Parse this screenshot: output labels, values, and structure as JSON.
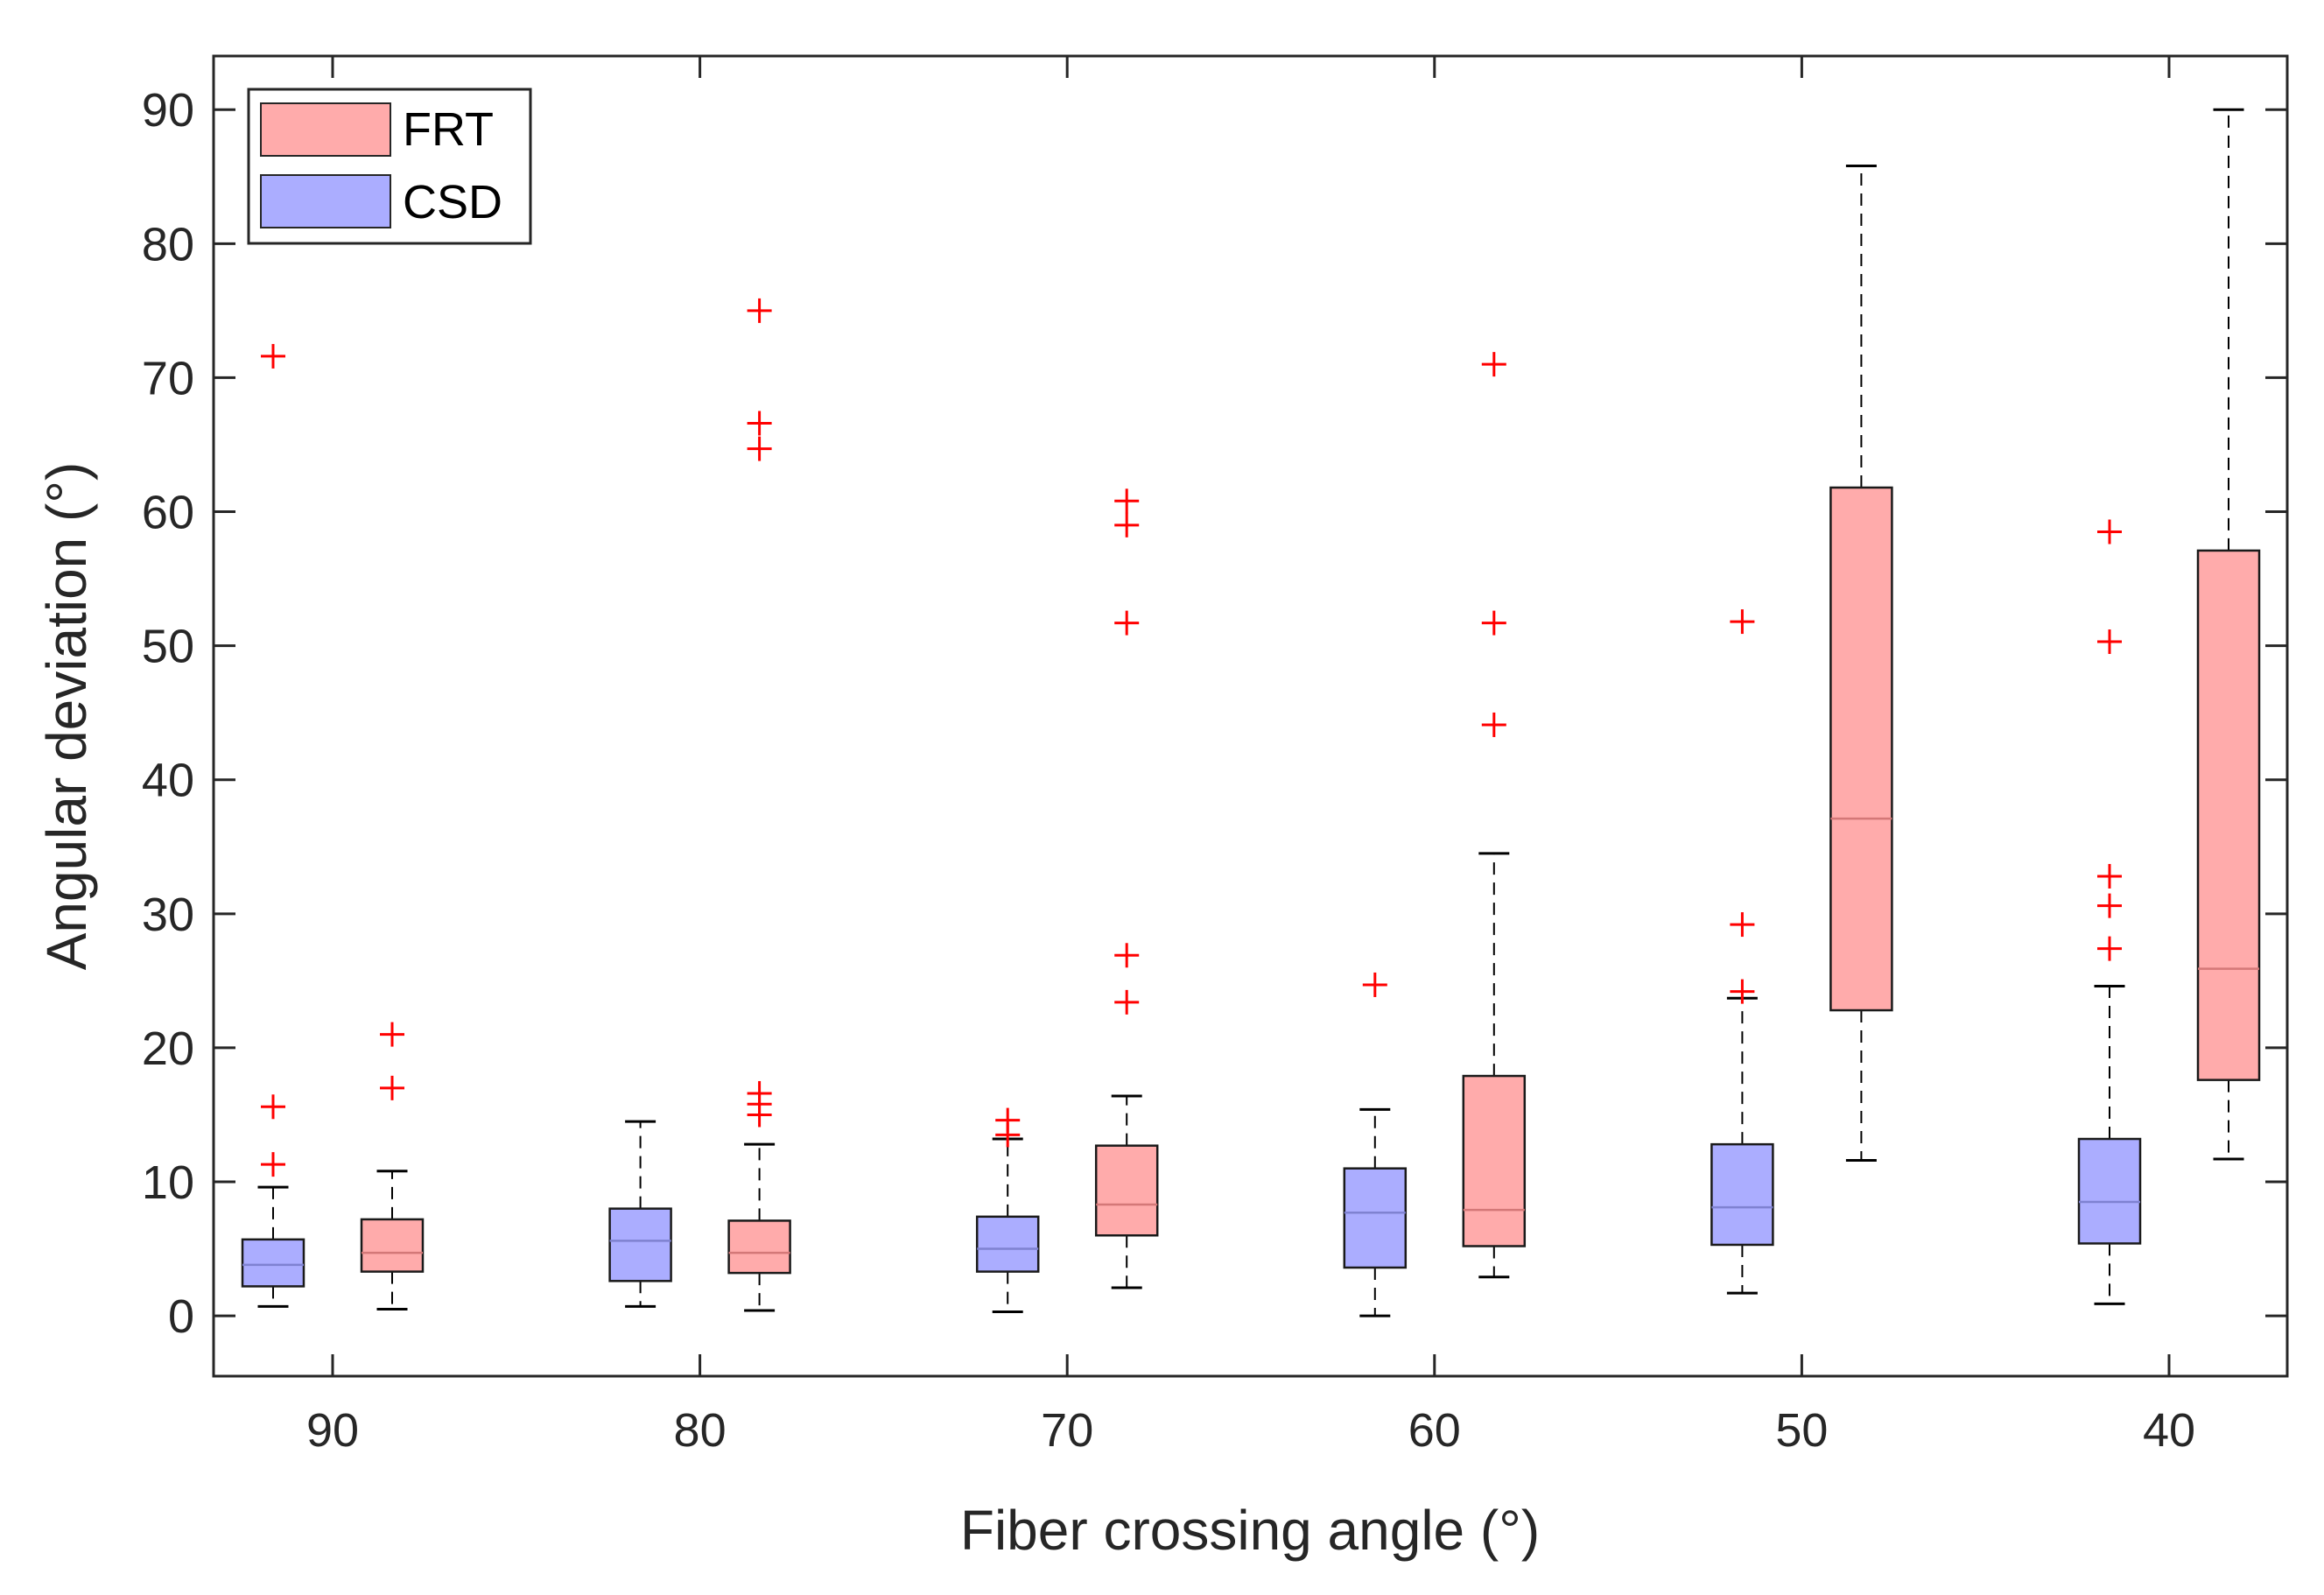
{
  "chart_data": {
    "type": "boxplot",
    "title": "",
    "xlabel": "Fiber crossing angle (°)",
    "ylabel": "Angular deviation (°)",
    "ylim": [
      -4.5,
      94
    ],
    "yticks": [
      0,
      10,
      20,
      30,
      40,
      50,
      60,
      70,
      80,
      90
    ],
    "categories": [
      "90",
      "80",
      "70",
      "60",
      "50",
      "40"
    ],
    "legend": {
      "position": "top-left",
      "entries": [
        "FRT",
        "CSD"
      ]
    },
    "colors": {
      "FRT_fill": "#ffabab",
      "CSD_fill": "#abadff",
      "outlier": "#ff0000",
      "median_FRT": "#d47878",
      "median_CSD": "#7f82d1",
      "axis": "#262626"
    },
    "series": [
      {
        "name": "CSD",
        "boxes": [
          {
            "category": "90",
            "whisker_low": 0.7,
            "q1": 2.2,
            "median": 3.8,
            "q3": 5.7,
            "whisker_high": 9.6,
            "outliers": [
              11.3,
              15.6,
              71.6
            ]
          },
          {
            "category": "80",
            "whisker_low": 0.7,
            "q1": 2.6,
            "median": 5.6,
            "q3": 8.0,
            "whisker_high": 14.5,
            "outliers": []
          },
          {
            "category": "70",
            "whisker_low": 0.3,
            "q1": 3.3,
            "median": 5.0,
            "q3": 7.4,
            "whisker_high": 13.2,
            "outliers": [
              13.5,
              14.6
            ]
          },
          {
            "category": "60",
            "whisker_low": 0.0,
            "q1": 3.6,
            "median": 7.7,
            "q3": 11.0,
            "whisker_high": 15.4,
            "outliers": [
              24.7
            ]
          },
          {
            "category": "50",
            "whisker_low": 1.7,
            "q1": 5.3,
            "median": 8.1,
            "q3": 12.8,
            "whisker_high": 23.7,
            "outliers": [
              24.2,
              29.2,
              51.8
            ]
          },
          {
            "category": "40",
            "whisker_low": 0.9,
            "q1": 5.4,
            "median": 8.5,
            "q3": 13.2,
            "whisker_high": 24.6,
            "outliers": [
              27.4,
              30.6,
              32.8,
              50.3,
              58.5
            ]
          }
        ]
      },
      {
        "name": "FRT",
        "boxes": [
          {
            "category": "90",
            "whisker_low": 0.5,
            "q1": 3.3,
            "median": 4.7,
            "q3": 7.2,
            "whisker_high": 10.8,
            "outliers": [
              17.0,
              21.0
            ]
          },
          {
            "category": "80",
            "whisker_low": 0.4,
            "q1": 3.2,
            "median": 4.7,
            "q3": 7.1,
            "whisker_high": 12.8,
            "outliers": [
              15.0,
              15.8,
              16.6,
              64.7,
              66.6,
              75.0
            ]
          },
          {
            "category": "70",
            "whisker_low": 2.1,
            "q1": 6.0,
            "median": 8.3,
            "q3": 12.7,
            "whisker_high": 16.4,
            "outliers": [
              23.4,
              26.9,
              51.7,
              59.0,
              60.8
            ]
          },
          {
            "category": "60",
            "whisker_low": 2.9,
            "q1": 5.2,
            "median": 7.9,
            "q3": 17.9,
            "whisker_high": 34.5,
            "outliers": [
              44.1,
              51.7,
              71.0
            ]
          },
          {
            "category": "50",
            "whisker_low": 11.6,
            "q1": 22.8,
            "median": 37.1,
            "q3": 61.8,
            "whisker_high": 85.8,
            "outliers": []
          },
          {
            "category": "40",
            "whisker_low": 11.7,
            "q1": 17.6,
            "median": 25.9,
            "q3": 57.1,
            "whisker_high": 90.0,
            "outliers": []
          }
        ]
      }
    ]
  }
}
